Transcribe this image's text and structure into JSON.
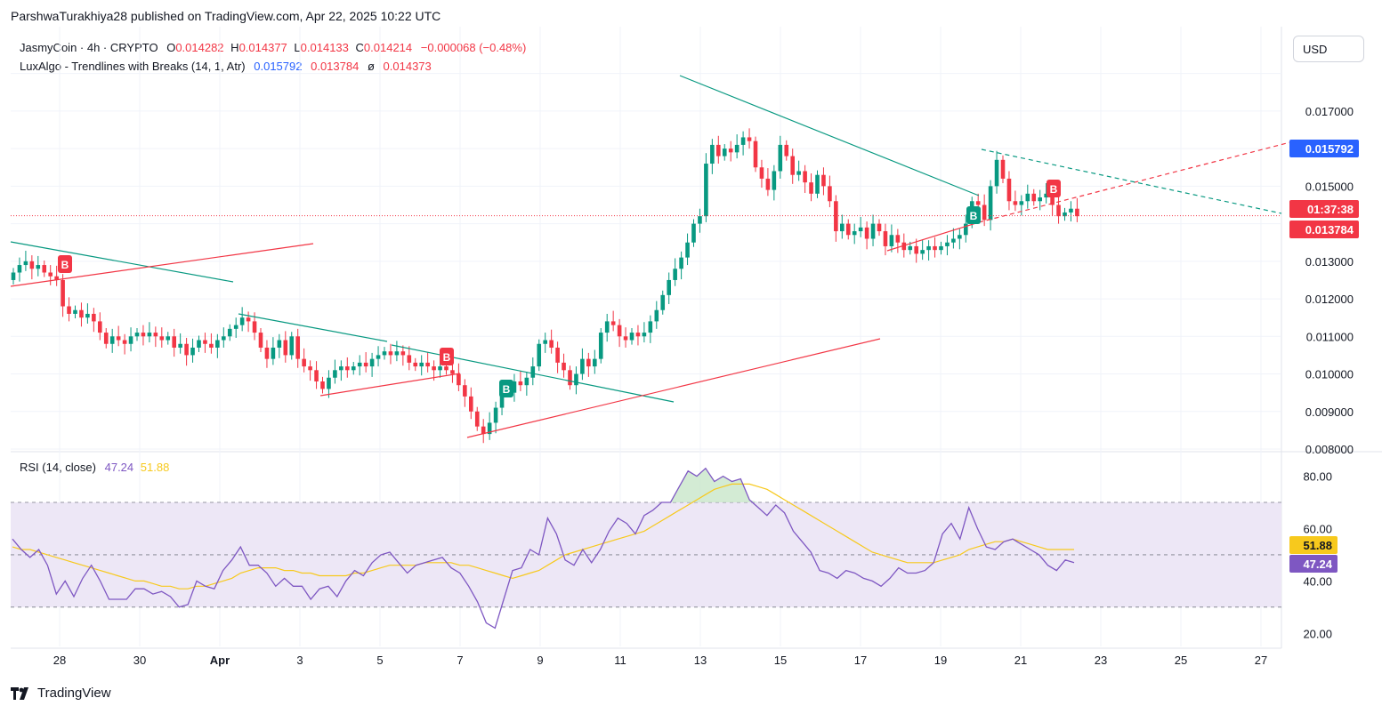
{
  "header": {
    "published": "ParshwaTurakhiya28 published on TradingView.com, Apr 22, 2025 10:22 UTC"
  },
  "symbol": {
    "name": "JasmyCoin · 4h · CRYPTO",
    "o_label": "O",
    "o": "0.014282",
    "h_label": "H",
    "h": "0.014377",
    "l_label": "L",
    "l": "0.014133",
    "c_label": "C",
    "c": "0.014214",
    "change": "−0.000068 (−0.48%)"
  },
  "indicator": {
    "name": "LuxAlgo - Trendlines with Breaks (14, 1, Atr)",
    "v1": "0.015792",
    "v2": "0.013784",
    "sep": "ø",
    "v3": "0.014373"
  },
  "currency_button": "USD",
  "rsi_legend": {
    "name": "RSI (14, close)",
    "rsi": "47.24",
    "ma": "51.88"
  },
  "footer": {
    "brand": "TradingView"
  },
  "colors": {
    "up": "#089981",
    "down": "#f23645",
    "trend_green": "#089981",
    "trend_red": "#f23645",
    "rsi": "#7e57c2",
    "rsi_ma": "#f7c91d",
    "band": "#ede7f6",
    "blue_label": "#2962ff"
  },
  "chart_data": [
    {
      "type": "candlestick",
      "title": "JasmyCoin · 4h · CRYPTO",
      "x_tick_labels": [
        "28",
        "30",
        "Apr",
        "3",
        "5",
        "7",
        "9",
        "11",
        "13",
        "15",
        "17",
        "19",
        "21",
        "23",
        "25",
        "27"
      ],
      "y_tick_labels": [
        "0.008000",
        "0.009000",
        "0.010000",
        "0.011000",
        "0.012000",
        "0.013000",
        "0.015000",
        "0.017000"
      ],
      "ylim": [
        0.008,
        0.0183
      ],
      "price_labels": [
        {
          "text": "0.015792",
          "value": 0.015792,
          "color": "#2962ff"
        },
        {
          "text": "01:37:38",
          "value": 0.014214,
          "color": "#f23645"
        },
        {
          "text": "0.013784",
          "value": 0.013784,
          "color": "#f23645"
        }
      ],
      "break_markers": [
        {
          "text": "B",
          "kind": "bearish"
        },
        {
          "text": "B",
          "kind": "bearish"
        },
        {
          "text": "B",
          "kind": "bullish"
        },
        {
          "text": "B",
          "kind": "bullish"
        },
        {
          "text": "B",
          "kind": "bearish"
        }
      ],
      "closes": [
        0.0127,
        0.0129,
        0.013,
        0.0128,
        0.0129,
        0.0127,
        0.0126,
        0.0125,
        0.0118,
        0.0116,
        0.0117,
        0.0115,
        0.0116,
        0.0114,
        0.0111,
        0.0108,
        0.011,
        0.0109,
        0.0108,
        0.011,
        0.0111,
        0.011,
        0.0111,
        0.011,
        0.0109,
        0.011,
        0.0107,
        0.0108,
        0.0105,
        0.0107,
        0.0109,
        0.0108,
        0.0107,
        0.0109,
        0.011,
        0.0112,
        0.0113,
        0.0115,
        0.0114,
        0.0111,
        0.0107,
        0.0104,
        0.0107,
        0.0109,
        0.0105,
        0.011,
        0.0104,
        0.0102,
        0.0101,
        0.0098,
        0.0096,
        0.0099,
        0.0101,
        0.0102,
        0.0101,
        0.0102,
        0.0103,
        0.0102,
        0.0104,
        0.0105,
        0.0106,
        0.0105,
        0.0106,
        0.0105,
        0.0103,
        0.0102,
        0.0103,
        0.0102,
        0.0101,
        0.0102,
        0.0101,
        0.01,
        0.0097,
        0.0094,
        0.009,
        0.0086,
        0.0084,
        0.0087,
        0.0091,
        0.0096,
        0.0095,
        0.0098,
        0.0097,
        0.0099,
        0.0102,
        0.0108,
        0.0109,
        0.0107,
        0.0103,
        0.0101,
        0.0097,
        0.01,
        0.0104,
        0.0102,
        0.0104,
        0.0111,
        0.0114,
        0.0113,
        0.011,
        0.0109,
        0.0111,
        0.011,
        0.0111,
        0.0114,
        0.0117,
        0.0121,
        0.0125,
        0.0128,
        0.0131,
        0.0135,
        0.014,
        0.0142,
        0.0156,
        0.0161,
        0.0158,
        0.016,
        0.0159,
        0.0161,
        0.0163,
        0.0162,
        0.0155,
        0.0152,
        0.0149,
        0.0154,
        0.0161,
        0.0158,
        0.0153,
        0.0154,
        0.0151,
        0.0148,
        0.0153,
        0.015,
        0.0146,
        0.0138,
        0.014,
        0.0137,
        0.0138,
        0.0139,
        0.0136,
        0.014,
        0.0138,
        0.0134,
        0.0137,
        0.0135,
        0.0133,
        0.0134,
        0.0132,
        0.0133,
        0.0134,
        0.0133,
        0.0134,
        0.0135,
        0.0136,
        0.0137,
        0.014,
        0.0146,
        0.0145,
        0.0141,
        0.015,
        0.0157,
        0.0152,
        0.0146,
        0.0145,
        0.0146,
        0.0148,
        0.0146,
        0.0147,
        0.0148,
        0.0145,
        0.0142,
        0.0143,
        0.0144,
        0.0142
      ],
      "xlabel": "",
      "ylabel": ""
    },
    {
      "type": "line",
      "title": "RSI (14, close)",
      "y_tick_labels": [
        "80.00",
        "60.00",
        "40.00",
        "20.00"
      ],
      "ylim": [
        15,
        88
      ],
      "levels": [
        70,
        50,
        30
      ],
      "value_labels": [
        {
          "text": "51.88",
          "value": 51.88,
          "color": "#f7c91d"
        },
        {
          "text": "47.24",
          "value": 47.24,
          "color": "#7e57c2"
        }
      ],
      "series": [
        {
          "name": "RSI",
          "values": [
            56,
            52,
            49,
            52,
            46,
            35,
            40,
            34,
            41,
            46,
            40,
            33,
            33,
            33,
            37,
            37,
            35,
            36,
            34,
            30,
            31,
            40,
            38,
            37,
            44,
            48,
            53,
            46,
            46,
            43,
            38,
            41,
            38,
            38,
            33,
            37,
            38,
            34,
            40,
            44,
            42,
            47,
            50,
            51,
            47,
            43,
            46,
            47,
            48,
            49,
            45,
            43,
            38,
            32,
            24,
            22,
            33,
            44,
            45,
            52,
            50,
            64,
            58,
            48,
            46,
            52,
            47,
            52,
            59,
            64,
            62,
            58,
            65,
            67,
            70,
            70,
            76,
            82,
            80,
            83,
            78,
            80,
            78,
            79,
            71,
            68,
            65,
            69,
            66,
            59,
            55,
            51,
            44,
            43,
            41,
            44,
            43,
            41,
            40,
            38,
            41,
            45,
            43,
            43,
            44,
            47,
            58,
            62,
            56,
            68,
            60,
            53,
            52,
            55,
            56,
            54,
            52,
            50,
            46,
            44,
            48,
            47
          ]
        },
        {
          "name": "RSI MA",
          "values": [
            53,
            52,
            52,
            51,
            50,
            49,
            48,
            47,
            46,
            45,
            44,
            43,
            42,
            41,
            40,
            40,
            39,
            38,
            38,
            37,
            37,
            38,
            38,
            39,
            40,
            41,
            43,
            44,
            45,
            45,
            45,
            44,
            44,
            43,
            43,
            42,
            42,
            42,
            42,
            43,
            43,
            44,
            45,
            46,
            46,
            46,
            46,
            47,
            47,
            47,
            47,
            46,
            46,
            45,
            44,
            43,
            42,
            41,
            42,
            43,
            44,
            46,
            48,
            50,
            51,
            52,
            53,
            54,
            55,
            56,
            57,
            58,
            59,
            61,
            63,
            65,
            67,
            69,
            71,
            73,
            75,
            76,
            77,
            77,
            77,
            76,
            75,
            73,
            71,
            69,
            67,
            65,
            63,
            61,
            59,
            57,
            55,
            53,
            51,
            50,
            49,
            48,
            47,
            47,
            47,
            47,
            48,
            49,
            50,
            52,
            53,
            54,
            55,
            55,
            56,
            55,
            54,
            53,
            52,
            52,
            52,
            52
          ]
        }
      ],
      "xlabel": "",
      "ylabel": ""
    }
  ]
}
